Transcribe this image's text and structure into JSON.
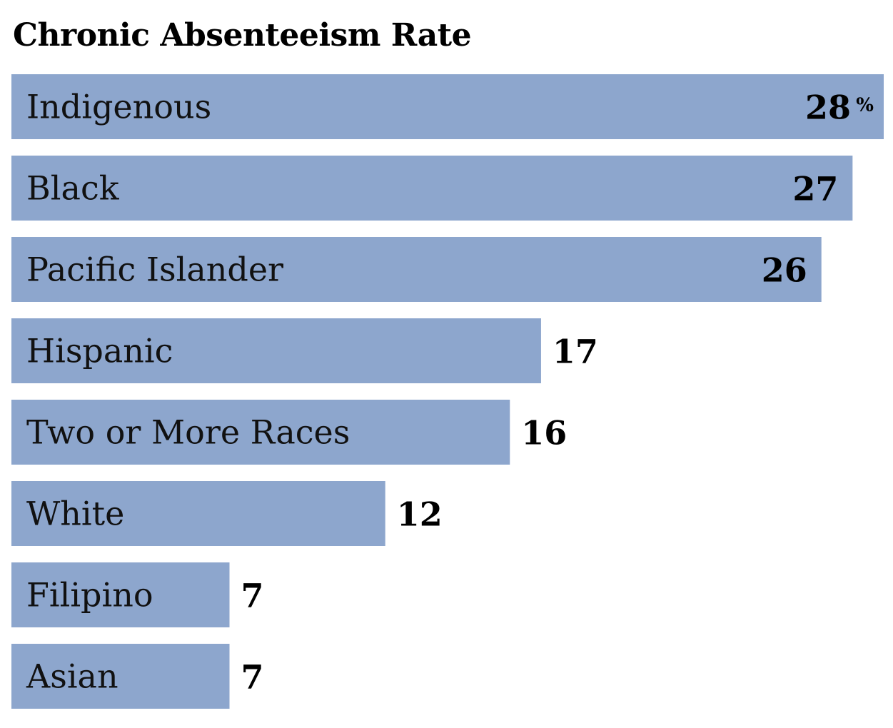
{
  "chart_data": {
    "type": "bar",
    "orientation": "horizontal",
    "title": "Chronic Absenteeism Rate",
    "categories": [
      "Indigenous",
      "Black",
      "Pacific Islander",
      "Hispanic",
      "Two or More Races",
      "White",
      "Filipino",
      "Asian"
    ],
    "values": [
      28,
      27,
      26,
      17,
      16,
      12,
      7,
      7
    ],
    "unit": "%",
    "xlim": [
      0,
      28
    ],
    "grid": false,
    "legend": "none",
    "bar_color": "#8da6cd"
  }
}
